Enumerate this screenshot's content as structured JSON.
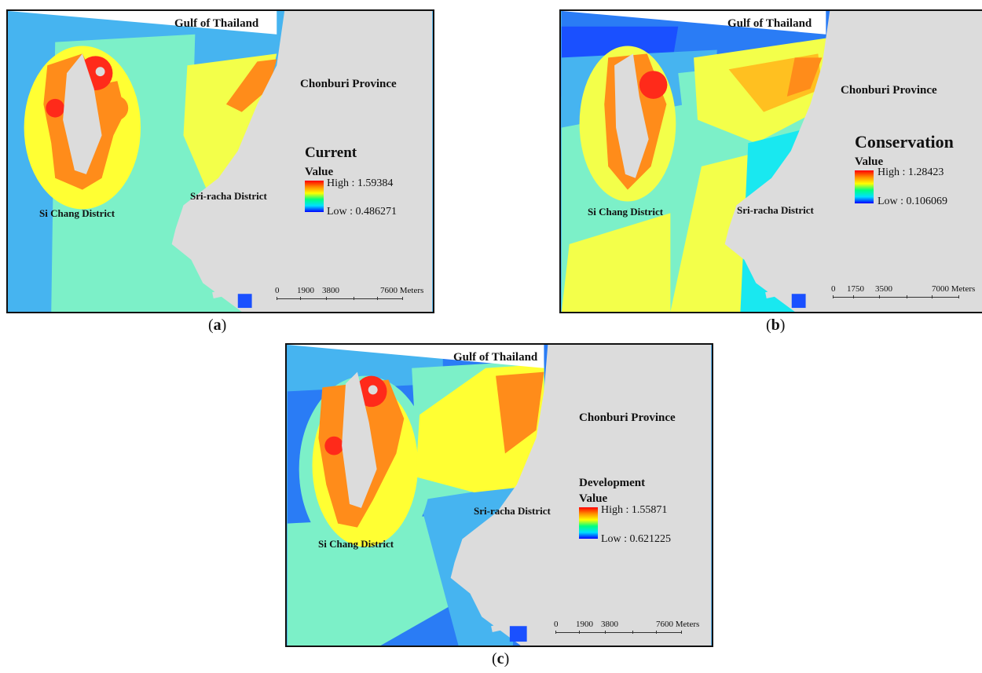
{
  "panels": [
    {
      "gulf_label": "Gulf of Thailand",
      "province_label": "Chonburi Province",
      "district_west": "Si Chang District",
      "district_east": "Sri-racha District",
      "legend_title": "Current",
      "legend_value_label": "Value",
      "legend_high": "High : 1.59384",
      "legend_low": "Low : 0.486271",
      "scale_ticks": [
        "0",
        "1900",
        "3800",
        "7600 Meters"
      ],
      "caption": "a"
    },
    {
      "gulf_label": "Gulf of Thailand",
      "province_label": "Chonburi Province",
      "district_west": "Si Chang District",
      "district_east": "Sri-racha District",
      "legend_title": "Conservation",
      "legend_value_label": "Value",
      "legend_high": "High : 1.28423",
      "legend_low": "Low : 0.106069",
      "scale_ticks": [
        "0",
        "1750",
        "3500",
        "7000 Meters"
      ],
      "caption": "b"
    },
    {
      "gulf_label": "Gulf of Thailand",
      "province_label": "Chonburi Province",
      "district_west": "Si Chang District",
      "district_east": "Sri-racha District",
      "legend_title": "Development",
      "legend_value_label": "Value",
      "legend_high": "High : 1.55871",
      "legend_low": "Low : 0.621225",
      "scale_ticks": [
        "0",
        "1900",
        "3800",
        "7600 Meters"
      ],
      "caption": "c"
    }
  ],
  "colors": {
    "land": "#dcdcdc",
    "sea_low": "#46b4f0",
    "sea_mid": "#7cf0c8",
    "sea_high": "#ffff33",
    "hot": "#ff8c1a",
    "hottest": "#ff2a1a",
    "deep_blue": "#1a50ff"
  }
}
